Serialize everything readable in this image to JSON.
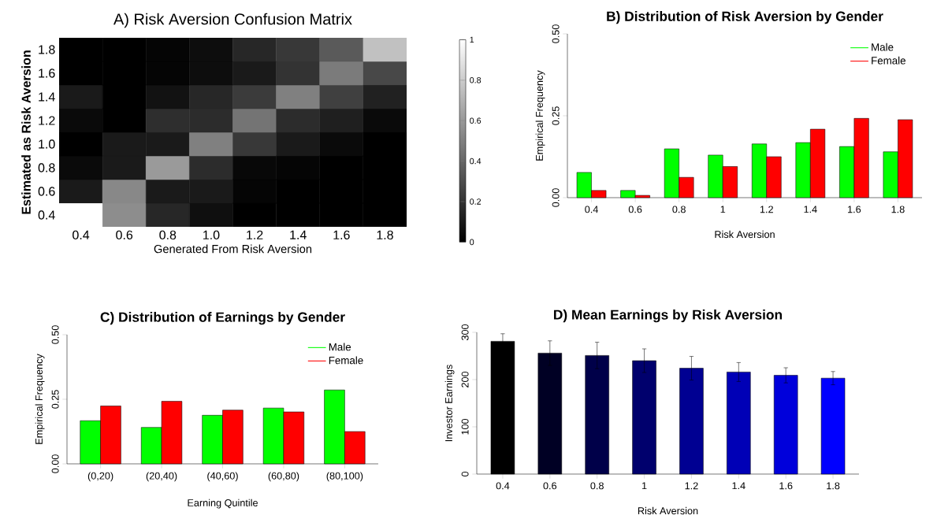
{
  "chart_data": [
    {
      "type": "heatmap",
      "title": "A) Risk Aversion Confusion Matrix",
      "xlabel": "Generated From Risk Aversion",
      "ylabel": "Estimated as Risk Aversion",
      "categories": [
        "0.4",
        "0.6",
        "0.8",
        "1.0",
        "1.2",
        "1.4",
        "1.6",
        "1.8"
      ],
      "y_categories": [
        "1.8",
        "1.6",
        "1.4",
        "1.2",
        "1.0",
        "0.8",
        "0.6",
        "0.4"
      ],
      "cells": [
        [
          0,
          0,
          0.02,
          0.05,
          0.15,
          0.22,
          0.35,
          0.75
        ],
        [
          0,
          0,
          0.02,
          0.05,
          0.1,
          0.2,
          0.48,
          0.28
        ],
        [
          0.1,
          0,
          0.07,
          0.15,
          0.23,
          0.5,
          0.25,
          0.13
        ],
        [
          0.04,
          0,
          0.18,
          0.17,
          0.45,
          0.17,
          0.12,
          0.04
        ],
        [
          0,
          0.1,
          0.1,
          0.5,
          0.22,
          0.1,
          0.04,
          0
        ],
        [
          0.04,
          0.1,
          0.6,
          0.17,
          0.03,
          0.02,
          0,
          0
        ],
        [
          0.1,
          0.53,
          0.1,
          0.1,
          0.02,
          0,
          0,
          0
        ],
        [
          1.0,
          0.55,
          0.15,
          0.06,
          0,
          0,
          0,
          0
        ]
      ],
      "clim": [
        0,
        1
      ],
      "cticks": [
        0,
        0.2,
        0.4,
        0.6,
        0.8,
        1
      ]
    },
    {
      "type": "bar",
      "title": "B) Distribution of Risk Aversion by Gender",
      "xlabel": "Risk Aversion",
      "ylabel": "Empirical Frequency",
      "categories": [
        "0.4",
        "0.6",
        "0.8",
        "1",
        "1.2",
        "1.4",
        "1.6",
        "1.8"
      ],
      "series": [
        {
          "name": "Male",
          "color": "#00ff00",
          "values": [
            0.077,
            0.022,
            0.149,
            0.13,
            0.164,
            0.168,
            0.156,
            0.14
          ]
        },
        {
          "name": "Female",
          "color": "#ff0000",
          "values": [
            0.022,
            0.007,
            0.062,
            0.095,
            0.125,
            0.209,
            0.242,
            0.238
          ]
        }
      ],
      "ylim": [
        0,
        0.5
      ],
      "yticks": [
        {
          "value": 0,
          "label": "0.00"
        },
        {
          "value": 0.25,
          "label": "0.25"
        },
        {
          "value": 0.5,
          "label": "0.50"
        }
      ],
      "legend": "top right"
    },
    {
      "type": "bar",
      "title": "C) Distribution of Earnings by Gender",
      "xlabel": "Earning Quintile",
      "ylabel": "Empirical Frequency",
      "categories": [
        "(0,20)",
        "(20,40)",
        "(40,60)",
        "(60,80)",
        "(80,100)"
      ],
      "series": [
        {
          "name": "Male",
          "color": "#00ff00",
          "values": [
            0.167,
            0.141,
            0.188,
            0.216,
            0.286
          ]
        },
        {
          "name": "Female",
          "color": "#ff0000",
          "values": [
            0.224,
            0.242,
            0.208,
            0.201,
            0.125
          ]
        }
      ],
      "ylim": [
        0,
        0.5
      ],
      "yticks": [
        {
          "value": 0,
          "label": "0.00"
        },
        {
          "value": 0.25,
          "label": "0.25"
        },
        {
          "value": 0.5,
          "label": "0.50"
        }
      ],
      "legend": "top right"
    },
    {
      "type": "bar",
      "title": "D) Mean Earnings by Risk Aversion",
      "xlabel": "Risk Aversion",
      "ylabel": "Investor Earnings",
      "categories": [
        "0.4",
        "0.6",
        "0.8",
        "1",
        "1.2",
        "1.4",
        "1.6",
        "1.8"
      ],
      "values": [
        281,
        256,
        251,
        240,
        224,
        216,
        209,
        203
      ],
      "errors": [
        16,
        26,
        28,
        25,
        25,
        20,
        16,
        14
      ],
      "colors": [
        "#000000",
        "#000024",
        "#000049",
        "#00006d",
        "#000092",
        "#0000b6",
        "#0000db",
        "#0000ff"
      ],
      "ylim": [
        0,
        300
      ],
      "yticks": [
        0,
        100,
        200,
        300
      ]
    }
  ]
}
